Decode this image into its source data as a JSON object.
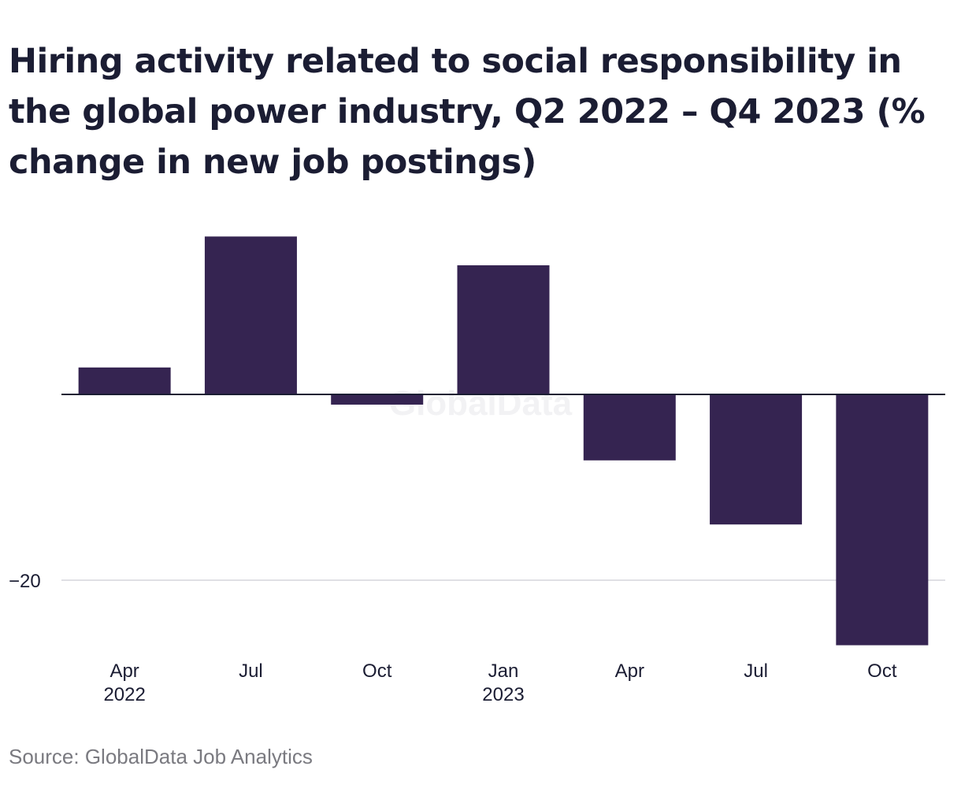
{
  "chart_data": {
    "type": "bar",
    "title": "Hiring activity related to social responsibility in the global power industry, Q2 2022 – Q4 2023 (% change in new job postings)",
    "categories": [
      "Apr 2022",
      "Jul",
      "Oct",
      "Jan 2023",
      "Apr",
      "Jul",
      "Oct"
    ],
    "category_labels": [
      {
        "line1": "Apr",
        "line2": "2022"
      },
      {
        "line1": "Jul",
        "line2": ""
      },
      {
        "line1": "Oct",
        "line2": ""
      },
      {
        "line1": "Jan",
        "line2": "2023"
      },
      {
        "line1": "Apr",
        "line2": ""
      },
      {
        "line1": "Jul",
        "line2": ""
      },
      {
        "line1": "Oct",
        "line2": ""
      }
    ],
    "values": [
      2.9,
      17.0,
      -1.1,
      13.9,
      -7.1,
      -14.0,
      -27.0
    ],
    "y_ticks": [
      {
        "value": -20,
        "label": "−20"
      }
    ],
    "ylim": [
      -30.5,
      20
    ],
    "xlabel": "",
    "ylabel": "",
    "grid": true,
    "bar_color": "#352451",
    "watermark": "GlobalData",
    "source": "Source: GlobalData Job Analytics"
  }
}
